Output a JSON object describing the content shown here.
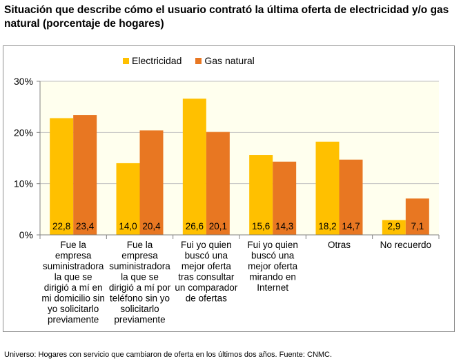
{
  "title": "Situación que describe cómo el usuario contrató la última oferta de electricidad y/o gas natural (porcentaje de hogares)",
  "footer": "Universo: Hogares con servicio que cambiaron de oferta en los últimos dos años. Fuente: CNMC.",
  "colors": {
    "electricidad": "#FFC000",
    "gas": "#E87722",
    "plot_bg": "#FFFFEE",
    "grid": "#BFBFBF"
  },
  "chart_data": {
    "type": "bar",
    "categories": [
      [
        "Fue la",
        "empresa",
        "suministradora",
        "la que se",
        "dirigió a mí en",
        "mi domicilio sin",
        "yo solicitarlo",
        "previamente"
      ],
      [
        "Fue la",
        "empresa",
        "suministradora",
        "la que se",
        "dirigió a mí por",
        "teléfono sin yo",
        "solicitarlo",
        "previamente"
      ],
      [
        "Fui yo quien",
        "buscó una",
        "mejor oferta",
        "tras consultar",
        "un comparador",
        "de ofertas"
      ],
      [
        "Fui yo quien",
        "buscó una",
        "mejor oferta",
        "mirando en",
        "Internet"
      ],
      [
        "Otras"
      ],
      [
        "No recuerdo"
      ]
    ],
    "series": [
      {
        "name": "Electricidad",
        "values": [
          22.8,
          14.0,
          26.6,
          15.6,
          18.2,
          2.9
        ],
        "labels": [
          "22,8",
          "14,0",
          "26,6",
          "15,6",
          "18,2",
          "2,9"
        ]
      },
      {
        "name": "Gas natural",
        "values": [
          23.4,
          20.4,
          20.1,
          14.3,
          14.7,
          7.1
        ],
        "labels": [
          "23,4",
          "20,4",
          "20,1",
          "14,3",
          "14,7",
          "7,1"
        ]
      }
    ],
    "ylim": [
      0,
      30
    ],
    "yticks": [
      0,
      10,
      20,
      30
    ],
    "ytick_labels": [
      "0%",
      "10%",
      "20%",
      "30%"
    ],
    "grid": true,
    "legend": "top"
  }
}
